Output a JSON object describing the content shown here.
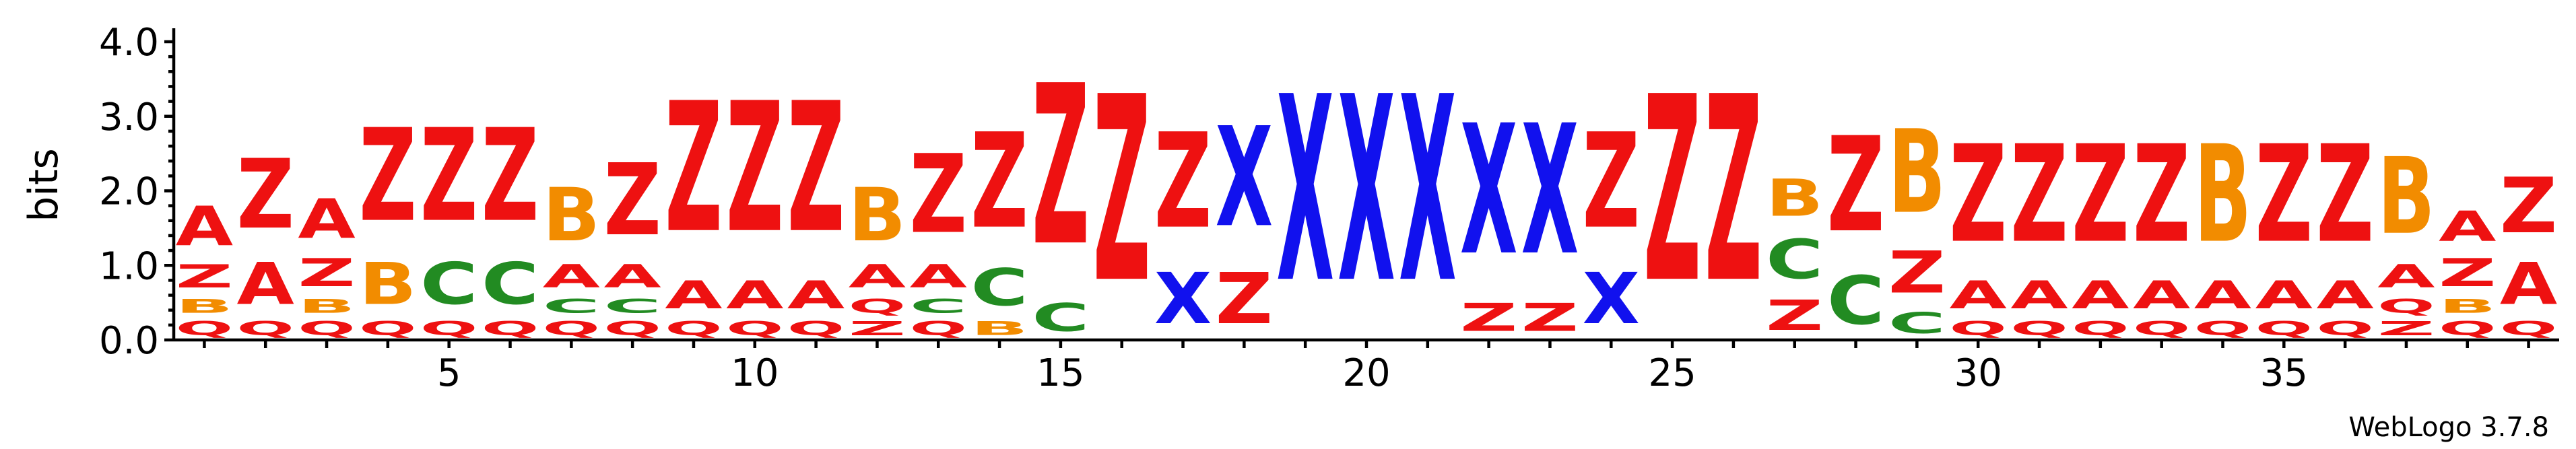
{
  "chart_data": {
    "type": "sequence-logo",
    "ylabel": "bits",
    "ylim": [
      0,
      4.0
    ],
    "yticks": [
      "0.0",
      "1.0",
      "2.0",
      "3.0",
      "4.0"
    ],
    "xticks": [
      5,
      10,
      15,
      20,
      25,
      30,
      35
    ],
    "n_positions": 39,
    "credit": "WebLogo 3.7.8",
    "colors": {
      "A": "#ee1111",
      "Z": "#ee1111",
      "Q": "#ee1111",
      "B": "#f28c00",
      "C": "#228b22",
      "X": "#1111ee"
    },
    "positions": [
      [
        [
          "Q",
          0.3
        ],
        [
          "B",
          0.3
        ],
        [
          "Z",
          0.5
        ],
        [
          "A",
          0.85
        ]
      ],
      [
        [
          "Q",
          0.3
        ],
        [
          "A",
          0.9
        ],
        [
          "Z",
          1.5
        ]
      ],
      [
        [
          "Q",
          0.3
        ],
        [
          "B",
          0.3
        ],
        [
          "Z",
          0.6
        ],
        [
          "A",
          0.85
        ]
      ],
      [
        [
          "Q",
          0.3
        ],
        [
          "B",
          0.9
        ],
        [
          "Z",
          2.0
        ]
      ],
      [
        [
          "Q",
          0.3
        ],
        [
          "C",
          0.9
        ],
        [
          "Z",
          2.0
        ]
      ],
      [
        [
          "Q",
          0.3
        ],
        [
          "C",
          0.9
        ],
        [
          "Z",
          2.0
        ]
      ],
      [
        [
          "Q",
          0.3
        ],
        [
          "C",
          0.3
        ],
        [
          "A",
          0.5
        ],
        [
          "B",
          1.15
        ]
      ],
      [
        [
          "Q",
          0.3
        ],
        [
          "C",
          0.3
        ],
        [
          "A",
          0.5
        ],
        [
          "Z",
          1.55
        ]
      ],
      [
        [
          "Q",
          0.3
        ],
        [
          "A",
          0.6
        ],
        [
          "Z",
          2.8
        ]
      ],
      [
        [
          "Q",
          0.3
        ],
        [
          "A",
          0.6
        ],
        [
          "Z",
          2.8
        ]
      ],
      [
        [
          "Q",
          0.3
        ],
        [
          "A",
          0.6
        ],
        [
          "Z",
          2.8
        ]
      ],
      [
        [
          "Z",
          0.3
        ],
        [
          "Q",
          0.3
        ],
        [
          "A",
          0.5
        ],
        [
          "B",
          1.15
        ]
      ],
      [
        [
          "Q",
          0.3
        ],
        [
          "C",
          0.3
        ],
        [
          "A",
          0.5
        ],
        [
          "Z",
          1.7
        ]
      ],
      [
        [
          "B",
          0.3
        ],
        [
          "C",
          0.8
        ],
        [
          "Z",
          2.05
        ]
      ],
      [
        [
          "C",
          0.6
        ],
        [
          "Z",
          3.45
        ]
      ],
      [
        [
          "Z",
          4.0
        ]
      ],
      [
        [
          "X",
          1.1
        ],
        [
          "Z",
          2.05
        ]
      ],
      [
        [
          "Z",
          1.1
        ],
        [
          "X",
          2.15
        ]
      ],
      [
        [
          "X",
          4.0
        ]
      ],
      [
        [
          "X",
          4.0
        ]
      ],
      [
        [
          "X",
          4.0
        ]
      ],
      [
        [
          "Z",
          0.6
        ],
        [
          "X",
          2.8
        ]
      ],
      [
        [
          "Z",
          0.6
        ],
        [
          "X",
          2.8
        ]
      ],
      [
        [
          "X",
          1.1
        ],
        [
          "Z",
          2.05
        ]
      ],
      [
        [
          "Z",
          4.0
        ]
      ],
      [
        [
          "Z",
          4.0
        ]
      ],
      [
        [
          "Z",
          0.65
        ],
        [
          "C",
          0.85
        ],
        [
          "B",
          0.8
        ]
      ],
      [
        [
          "C",
          1.05
        ],
        [
          "Z",
          2.05
        ]
      ],
      [
        [
          "C",
          0.45
        ],
        [
          "Z",
          0.9
        ],
        [
          "B",
          1.8
        ]
      ],
      [
        [
          "Q",
          0.3
        ],
        [
          "A",
          0.6
        ],
        [
          "Z",
          2.1
        ]
      ],
      [
        [
          "Q",
          0.3
        ],
        [
          "A",
          0.6
        ],
        [
          "Z",
          2.1
        ]
      ],
      [
        [
          "Q",
          0.3
        ],
        [
          "A",
          0.6
        ],
        [
          "Z",
          2.1
        ]
      ],
      [
        [
          "Q",
          0.3
        ],
        [
          "A",
          0.6
        ],
        [
          "Z",
          2.1
        ]
      ],
      [
        [
          "Q",
          0.3
        ],
        [
          "A",
          0.6
        ],
        [
          "B",
          2.1
        ]
      ],
      [
        [
          "Q",
          0.3
        ],
        [
          "A",
          0.6
        ],
        [
          "Z",
          2.1
        ]
      ],
      [
        [
          "Q",
          0.3
        ],
        [
          "A",
          0.6
        ],
        [
          "Z",
          2.1
        ]
      ],
      [
        [
          "Z",
          0.3
        ],
        [
          "Q",
          0.3
        ],
        [
          "A",
          0.5
        ],
        [
          "B",
          1.65
        ]
      ],
      [
        [
          "Q",
          0.3
        ],
        [
          "B",
          0.3
        ],
        [
          "Z",
          0.6
        ],
        [
          "A",
          0.65
        ]
      ],
      [
        [
          "Q",
          0.3
        ],
        [
          "A",
          0.9
        ],
        [
          "Z",
          1.2
        ]
      ]
    ]
  }
}
